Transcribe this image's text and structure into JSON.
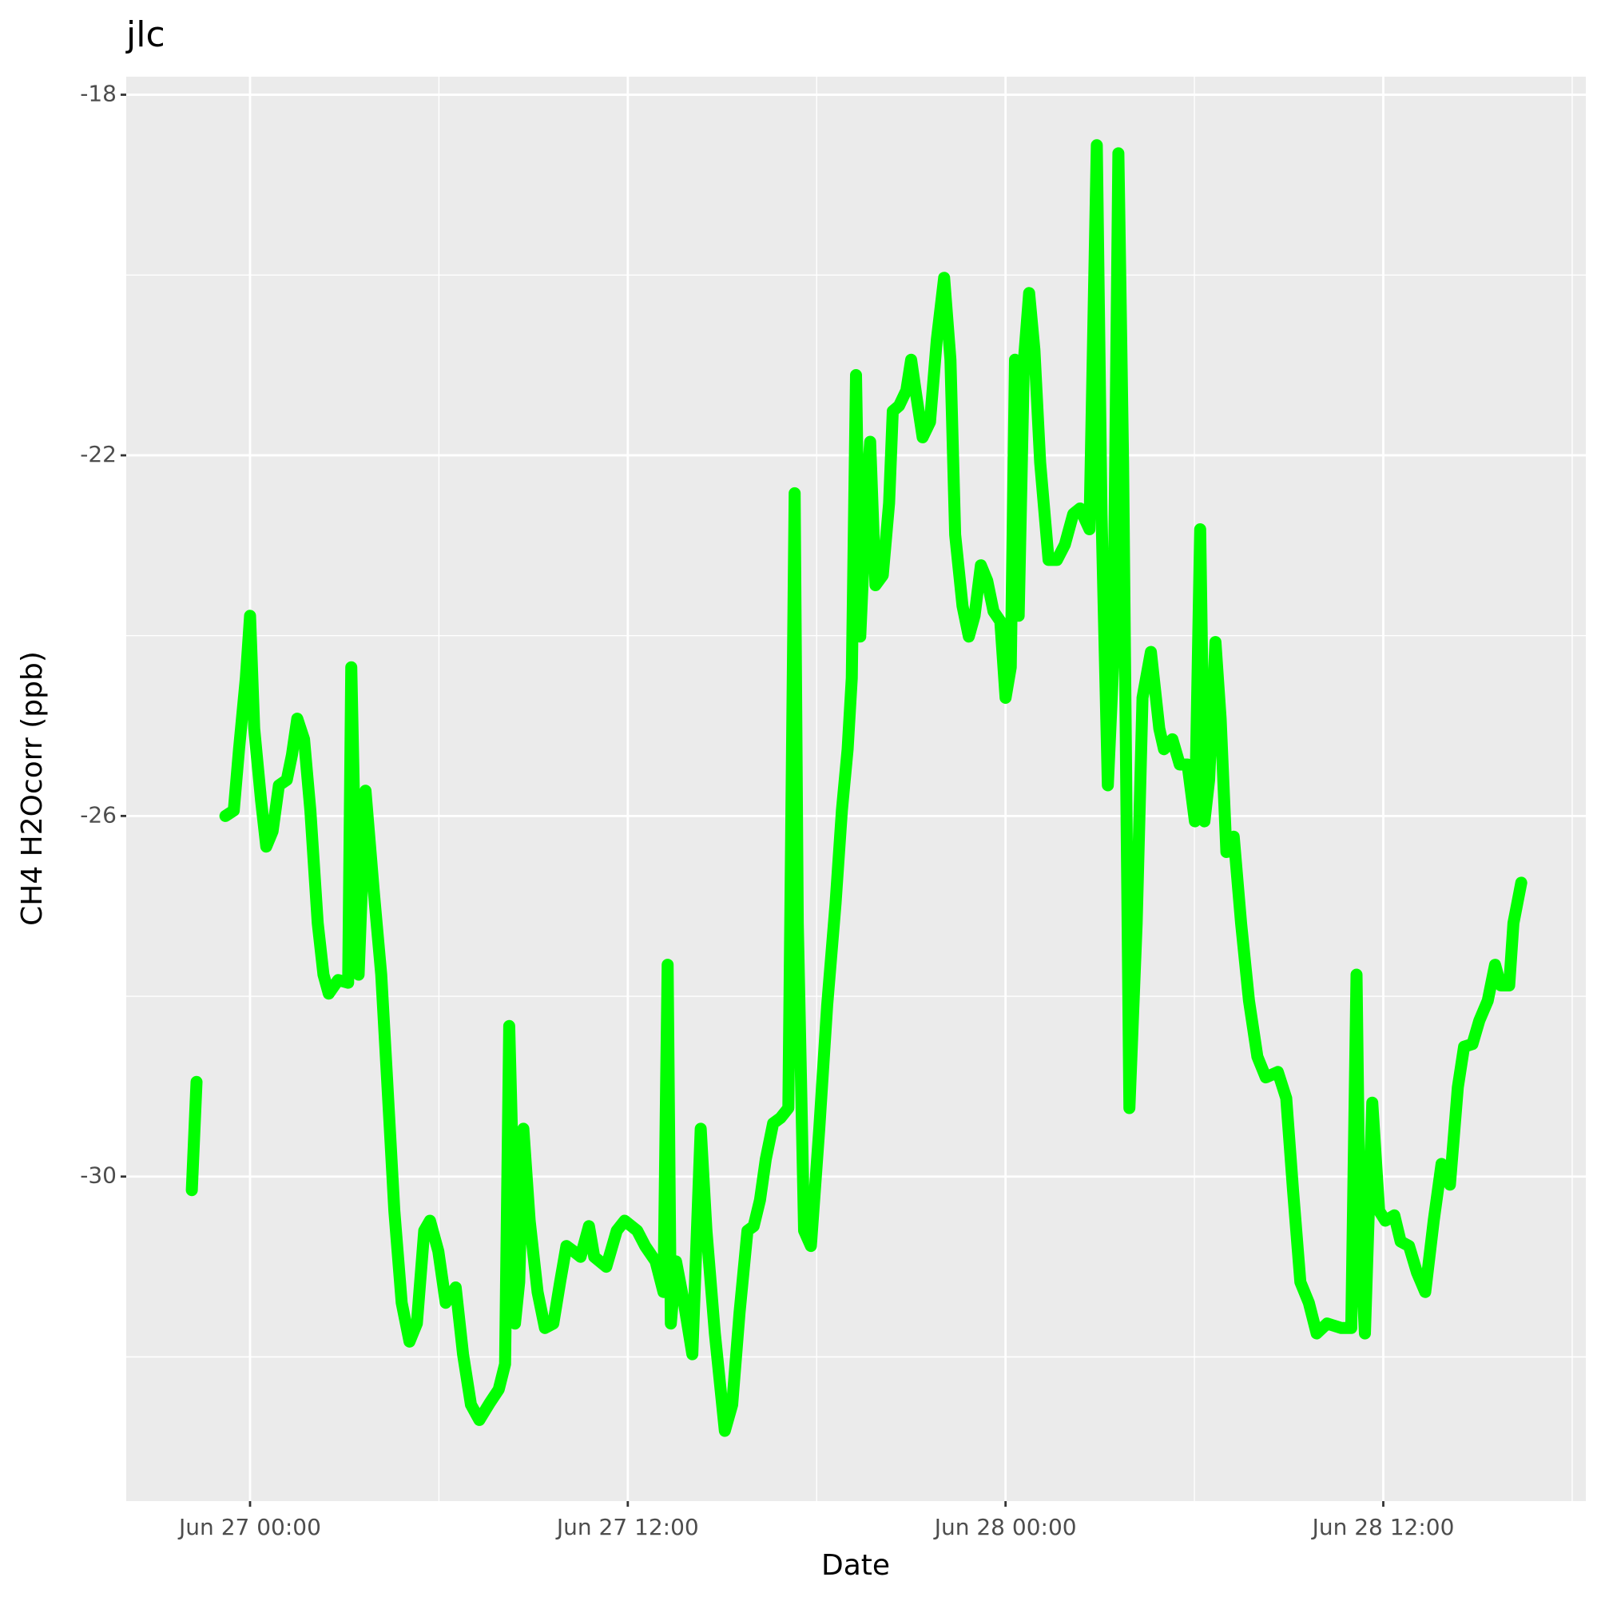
{
  "chart_data": {
    "type": "line",
    "title": "jlc",
    "x_label": "Date",
    "y_label": "CH4 H2Ocorr (ppb)",
    "x": [
      "Jun 26 22:09",
      "Jun 26 22:18",
      "Jun 26 22:45",
      "Jun 26 23:13",
      "Jun 26 23:29",
      "Jun 26 23:39",
      "Jun 26 23:52",
      "Jun 27 00:00",
      "Jun 27 00:08",
      "Jun 27 00:21",
      "Jun 27 00:31",
      "Jun 27 00:43",
      "Jun 27 00:55",
      "Jun 27 01:10",
      "Jun 27 01:20",
      "Jun 27 01:30",
      "Jun 27 01:43",
      "Jun 27 01:55",
      "Jun 27 02:09",
      "Jun 27 02:20",
      "Jun 27 02:30",
      "Jun 27 02:48",
      "Jun 27 03:07",
      "Jun 27 03:13",
      "Jun 27 03:19",
      "Jun 27 03:27",
      "Jun 27 03:40",
      "Jun 27 03:56",
      "Jun 27 04:10",
      "Jun 27 04:21",
      "Jun 27 04:35",
      "Jun 27 04:49",
      "Jun 27 05:04",
      "Jun 27 05:18",
      "Jun 27 05:32",
      "Jun 27 05:43",
      "Jun 27 05:59",
      "Jun 27 06:13",
      "Jun 27 06:32",
      "Jun 27 06:46",
      "Jun 27 07:01",
      "Jun 27 07:17",
      "Jun 27 07:37",
      "Jun 27 07:54",
      "Jun 27 08:06",
      "Jun 27 08:14",
      "Jun 27 08:19",
      "Jun 27 08:25",
      "Jun 27 08:33",
      "Jun 27 08:41",
      "Jun 27 08:53",
      "Jun 27 09:08",
      "Jun 27 09:22",
      "Jun 27 09:38",
      "Jun 27 09:51",
      "Jun 27 10:03",
      "Jun 27 10:17",
      "Jun 27 10:30",
      "Jun 27 10:46",
      "Jun 27 10:56",
      "Jun 27 11:19",
      "Jun 27 11:39",
      "Jun 27 11:54",
      "Jun 27 12:18",
      "Jun 27 12:33",
      "Jun 27 12:53",
      "Jun 27 13:08",
      "Jun 27 13:16",
      "Jun 27 13:22",
      "Jun 27 13:32",
      "Jun 27 13:47",
      "Jun 27 14:03",
      "Jun 27 14:19",
      "Jun 27 14:30",
      "Jun 27 14:46",
      "Jun 27 15:05",
      "Jun 27 15:19",
      "Jun 27 15:33",
      "Jun 27 15:48",
      "Jun 27 16:00",
      "Jun 27 16:12",
      "Jun 27 16:23",
      "Jun 27 16:37",
      "Jun 27 16:51",
      "Jun 27 17:06",
      "Jun 27 17:18",
      "Jun 27 17:24",
      "Jun 27 17:36",
      "Jun 27 17:49",
      "Jun 27 18:05",
      "Jun 27 18:20",
      "Jun 27 18:36",
      "Jun 27 18:48",
      "Jun 27 18:59",
      "Jun 27 19:07",
      "Jun 27 19:15",
      "Jun 27 19:23",
      "Jun 27 19:35",
      "Jun 27 19:42",
      "Jun 27 19:52",
      "Jun 27 20:06",
      "Jun 27 20:18",
      "Jun 27 20:25",
      "Jun 27 20:37",
      "Jun 27 20:51",
      "Jun 27 21:00",
      "Jun 27 21:10",
      "Jun 27 21:22",
      "Jun 27 21:36",
      "Jun 27 21:49",
      "Jun 27 22:03",
      "Jun 27 22:15",
      "Jun 27 22:24",
      "Jun 27 22:38",
      "Jun 27 22:50",
      "Jun 27 23:01",
      "Jun 27 23:13",
      "Jun 27 23:25",
      "Jun 27 23:37",
      "Jun 27 23:50",
      "Jun 28 00:00",
      "Jun 28 00:10",
      "Jun 28 00:18",
      "Jun 28 00:25",
      "Jun 28 00:35",
      "Jun 28 00:45",
      "Jun 28 00:55",
      "Jun 28 01:06",
      "Jun 28 01:22",
      "Jun 28 01:38",
      "Jun 28 01:53",
      "Jun 28 02:09",
      "Jun 28 02:22",
      "Jun 28 02:40",
      "Jun 28 02:54",
      "Jun 28 03:03",
      "Jun 28 03:15",
      "Jun 28 03:25",
      "Jun 28 03:35",
      "Jun 28 03:44",
      "Jun 28 03:56",
      "Jun 28 04:10",
      "Jun 28 04:21",
      "Jun 28 04:37",
      "Jun 28 04:53",
      "Jun 28 05:02",
      "Jun 28 05:18",
      "Jun 28 05:32",
      "Jun 28 05:47",
      "Jun 28 06:01",
      "Jun 28 06:11",
      "Jun 28 06:19",
      "Jun 28 06:28",
      "Jun 28 06:40",
      "Jun 28 06:50",
      "Jun 28 07:01",
      "Jun 28 07:15",
      "Jun 28 07:29",
      "Jun 28 07:44",
      "Jun 28 08:00",
      "Jun 28 08:16",
      "Jun 28 08:39",
      "Jun 28 08:55",
      "Jun 28 09:08",
      "Jun 28 09:22",
      "Jun 28 09:38",
      "Jun 28 09:53",
      "Jun 28 10:13",
      "Jun 28 10:40",
      "Jun 28 10:59",
      "Jun 28 11:09",
      "Jun 28 11:15",
      "Jun 28 11:25",
      "Jun 28 11:39",
      "Jun 28 11:52",
      "Jun 28 12:04",
      "Jun 28 12:21",
      "Jun 28 12:33",
      "Jun 28 12:49",
      "Jun 28 13:04",
      "Jun 28 13:20",
      "Jun 28 13:36",
      "Jun 28 13:51",
      "Jun 28 14:07",
      "Jun 28 14:22",
      "Jun 28 14:34",
      "Jun 28 14:50",
      "Jun 28 15:03",
      "Jun 28 15:19",
      "Jun 28 15:33",
      "Jun 28 15:44",
      "Jun 28 16:00",
      "Jun 28 16:08",
      "Jun 28 16:23"
    ],
    "series": [
      {
        "color": "#00ff00",
        "values": [
          -30.15,
          -28.95,
          null,
          -26.0,
          -25.94,
          -25.26,
          -24.47,
          -23.78,
          -25.03,
          -25.83,
          -26.34,
          -26.17,
          -25.66,
          -25.6,
          -25.32,
          -24.92,
          -25.15,
          -25.94,
          -27.19,
          -27.76,
          -27.97,
          -27.82,
          -27.85,
          -24.35,
          -26.06,
          -27.76,
          -25.72,
          -26.85,
          -27.76,
          -28.9,
          -30.38,
          -31.4,
          -31.83,
          -31.63,
          -30.6,
          -30.49,
          -30.83,
          -31.4,
          -31.23,
          -31.97,
          -32.53,
          -32.7,
          -32.51,
          -32.36,
          -32.08,
          -28.33,
          -29.47,
          -31.63,
          -31.17,
          -29.47,
          -30.49,
          -31.28,
          -31.68,
          -31.63,
          -31.17,
          -30.77,
          -30.83,
          -30.89,
          -30.55,
          -30.89,
          -31.0,
          -30.6,
          -30.49,
          -30.6,
          -30.77,
          -30.94,
          -31.28,
          -27.65,
          -31.63,
          -30.94,
          -31.4,
          -31.97,
          -29.47,
          -30.6,
          -31.74,
          -32.82,
          -32.53,
          -31.51,
          -30.6,
          -30.55,
          -30.26,
          -29.81,
          -29.41,
          -29.35,
          -29.24,
          -22.42,
          -27.19,
          -30.6,
          -30.77,
          -29.47,
          -28.1,
          -26.97,
          -25.94,
          -25.26,
          -24.47,
          -21.11,
          -24.01,
          -22.42,
          -21.85,
          -23.44,
          -23.33,
          -22.53,
          -21.51,
          -21.45,
          -21.28,
          -20.94,
          -21.34,
          -21.8,
          -21.63,
          -20.72,
          -20.03,
          -20.94,
          -22.88,
          -23.67,
          -24.01,
          -23.78,
          -23.22,
          -23.39,
          -23.73,
          -23.84,
          -24.69,
          -24.35,
          -20.94,
          -23.78,
          -20.94,
          -20.2,
          -20.83,
          -22.08,
          -23.16,
          -23.16,
          -22.99,
          -22.65,
          -22.59,
          -22.82,
          -18.56,
          -22.65,
          -25.66,
          -24.35,
          -18.65,
          -22.08,
          -29.24,
          -27.19,
          -24.69,
          -24.18,
          -25.03,
          -25.26,
          -25.15,
          -25.43,
          -25.43,
          -26.06,
          -22.82,
          -26.06,
          -25.6,
          -24.07,
          -24.92,
          -26.4,
          -26.23,
          -27.19,
          -28.05,
          -28.67,
          -28.9,
          -28.84,
          -29.13,
          -30.15,
          -31.17,
          -31.4,
          -31.74,
          -31.63,
          -31.68,
          -31.68,
          -27.76,
          -30.6,
          -31.74,
          -29.18,
          -30.38,
          -30.49,
          -30.43,
          -30.72,
          -30.77,
          -31.06,
          -31.28,
          -30.49,
          -29.86,
          -30.09,
          -29.01,
          -28.56,
          -28.53,
          -28.27,
          -28.05,
          -27.65,
          -27.88,
          -27.88,
          -27.19,
          -26.74
        ]
      }
    ],
    "xlim": [
      "Jun 26 20:04",
      "Jun 28 18:26"
    ],
    "xticks": [
      "Jun 27 00:00",
      "Jun 27 12:00",
      "Jun 28 00:00",
      "Jun 28 12:00"
    ],
    "ylim": [
      -33.6,
      -17.8
    ],
    "yticks": [
      -30,
      -26,
      -22,
      -18
    ],
    "grid": true
  }
}
